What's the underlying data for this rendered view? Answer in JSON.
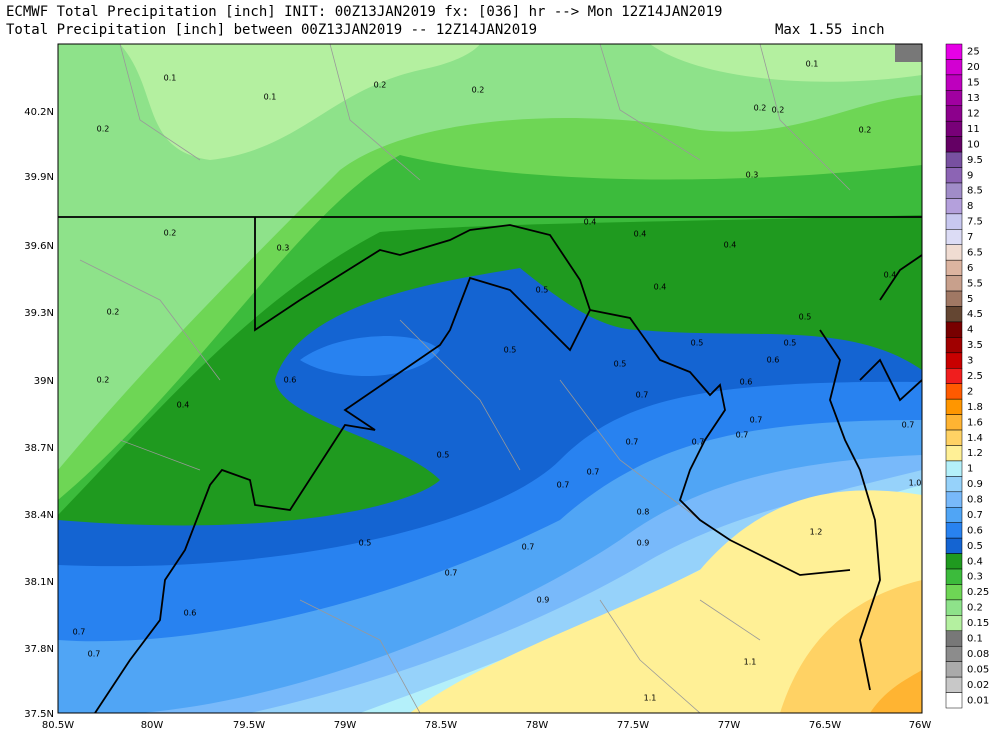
{
  "header": {
    "title_line1": "ECMWF Total Precipitation [inch] INIT: 00Z13JAN2019 fx: [036] hr --> Mon 12Z14JAN2019",
    "title_line2": "Total Precipitation [inch] between 00Z13JAN2019 -- 12Z14JAN2019",
    "max_label": "Max 1.55 inch"
  },
  "map": {
    "lat_labels": [
      "40.2N",
      "39.9N",
      "39.6N",
      "39.3N",
      "39N",
      "38.7N",
      "38.4N",
      "38.1N",
      "37.8N",
      "37.5N"
    ],
    "lon_labels": [
      "80.5W",
      "80W",
      "79.5W",
      "79W",
      "78.5W",
      "78W",
      "77.5W",
      "77W",
      "76.5W",
      "76W"
    ],
    "contour_labels": [
      "0.1",
      "0.1",
      "0.2",
      "0.2",
      "0.1",
      "0.2",
      "0.2",
      "0.2",
      "0.2",
      "0.3",
      "0.2",
      "0.3",
      "0.4",
      "0.4",
      "0.4",
      "0.4",
      "0.2",
      "0.4",
      "0.5",
      "0.5",
      "0.5",
      "0.5",
      "0.5",
      "0.5",
      "0.6",
      "0.6",
      "0.6",
      "0.2",
      "0.4",
      "0.7",
      "0.7",
      "0.7",
      "0.7",
      "0.7",
      "0.7",
      "0.5",
      "0.7",
      "0.7",
      "0.8",
      "0.5",
      "0.7",
      "0.9",
      "1.2",
      "0.7",
      "0.9",
      "0.6",
      "0.7",
      "0.7",
      "1.1",
      "1.1",
      "1.0"
    ]
  },
  "colorbar": {
    "labels": [
      "25",
      "20",
      "15",
      "13",
      "12",
      "11",
      "10",
      "9.5",
      "9",
      "8.5",
      "8",
      "7.5",
      "7",
      "6.5",
      "6",
      "5.5",
      "5",
      "4.5",
      "4",
      "3.5",
      "3",
      "2.5",
      "2",
      "1.8",
      "1.6",
      "1.4",
      "1.2",
      "1",
      "0.9",
      "0.8",
      "0.7",
      "0.6",
      "0.5",
      "0.4",
      "0.3",
      "0.25",
      "0.2",
      "0.15",
      "0.1",
      "0.08",
      "0.05",
      "0.02",
      "0.01"
    ],
    "colors": [
      "#e600e6",
      "#d200d2",
      "#be00be",
      "#a000a0",
      "#8c008c",
      "#780078",
      "#640064",
      "#7850a0",
      "#8c64b4",
      "#a08cc8",
      "#b4a0dc",
      "#c8c8f0",
      "#dcdcf5",
      "#f0dcd2",
      "#dcb4a0",
      "#c8a08c",
      "#a07864",
      "#644632",
      "#780000",
      "#a00000",
      "#c80000",
      "#f01e1e",
      "#ff5a00",
      "#ff9600",
      "#ffb432",
      "#ffd264",
      "#fff096",
      "#b4f0fa",
      "#96d2fa",
      "#78b9fa",
      "#50a5f5",
      "#2882f0",
      "#1464d2",
      "#1f9a1f",
      "#3cbb3c",
      "#6ed655",
      "#8ee28a",
      "#b4f0a0",
      "#787878",
      "#8c8c8c",
      "#aaaaaa",
      "#c8c8c8",
      "#ffffff"
    ]
  }
}
